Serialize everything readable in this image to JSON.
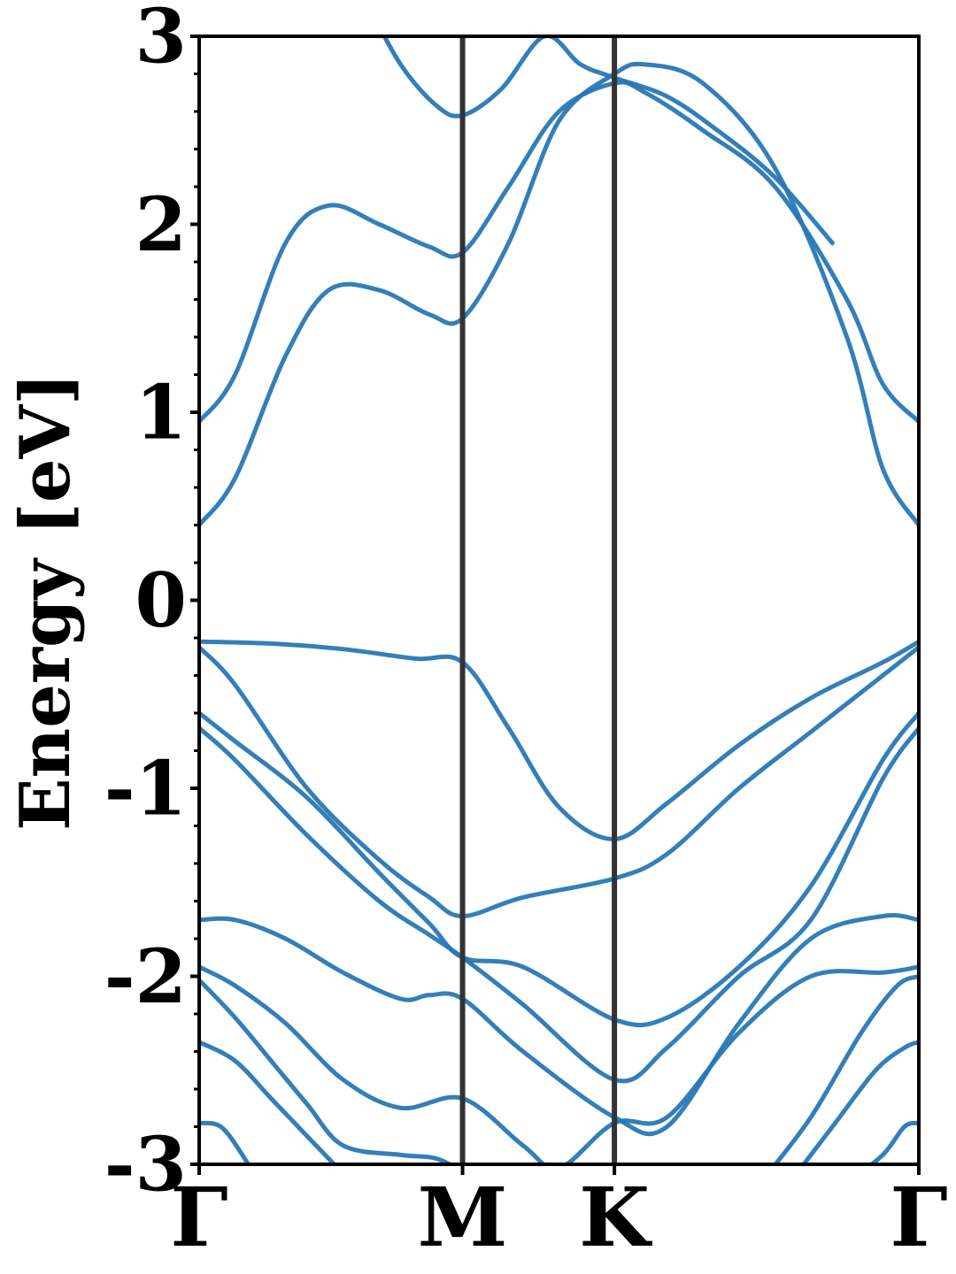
{
  "chart_data": {
    "type": "line",
    "title": "",
    "xlabel": "",
    "ylabel": "Energy [eV]",
    "ylim": [
      -3,
      3
    ],
    "yticks": [
      -3,
      -2,
      -1,
      0,
      1,
      2,
      3
    ],
    "ytick_labels": [
      "-3",
      "-2",
      "-1",
      "0",
      "1",
      "2",
      "3"
    ],
    "xlim": [
      0,
      1
    ],
    "kpoints": [
      {
        "label": "Γ",
        "x": 0.0
      },
      {
        "label": "M",
        "x": 0.366
      },
      {
        "label": "K",
        "x": 0.577
      },
      {
        "label": "Γ",
        "x": 1.0
      }
    ],
    "grid": false,
    "line_color": "#2878b5",
    "kpoint_line_color": "#333333",
    "series": [
      {
        "x": [
          0,
          0.05,
          0.12,
          0.18,
          0.25,
          0.32,
          0.366,
          0.43,
          0.5,
          0.577,
          0.62,
          0.7,
          0.8,
          0.9,
          0.95,
          1.0
        ],
        "values": [
          0.4,
          0.65,
          1.3,
          1.65,
          1.65,
          1.52,
          1.5,
          1.9,
          2.55,
          2.8,
          2.85,
          2.75,
          2.3,
          1.4,
          0.7,
          0.4
        ]
      },
      {
        "x": [
          0,
          0.05,
          0.12,
          0.18,
          0.25,
          0.32,
          0.366,
          0.43,
          0.5,
          0.577,
          0.62,
          0.7,
          0.8,
          0.9,
          0.95,
          1.0
        ],
        "values": [
          0.95,
          1.2,
          1.9,
          2.1,
          2.0,
          1.88,
          1.85,
          2.2,
          2.6,
          2.75,
          2.7,
          2.5,
          2.2,
          1.6,
          1.15,
          0.95
        ]
      },
      {
        "x": [
          0.23,
          0.28,
          0.33,
          0.366,
          0.42,
          0.48,
          0.53,
          0.577,
          0.65,
          0.72,
          0.8,
          0.88
        ],
        "values": [
          3.2,
          2.85,
          2.63,
          2.58,
          2.72,
          3.0,
          2.85,
          2.78,
          2.68,
          2.5,
          2.25,
          1.9
        ]
      },
      {
        "x": [
          0,
          0.1,
          0.2,
          0.3,
          0.366,
          0.43,
          0.5,
          0.577,
          0.65,
          0.75,
          0.85,
          0.95,
          1.0
        ],
        "values": [
          -0.22,
          -0.23,
          -0.26,
          -0.31,
          -0.33,
          -0.68,
          -1.1,
          -1.27,
          -1.08,
          -0.77,
          -0.52,
          -0.33,
          -0.22
        ]
      },
      {
        "x": [
          0,
          0.05,
          0.15,
          0.25,
          0.32,
          0.366,
          0.45,
          0.577,
          0.65,
          0.75,
          0.85,
          0.95,
          1.0
        ],
        "values": [
          -0.25,
          -0.45,
          -1.0,
          -1.38,
          -1.58,
          -1.68,
          -1.58,
          -1.48,
          -1.35,
          -1.0,
          -0.7,
          -0.4,
          -0.25
        ]
      },
      {
        "x": [
          0,
          0.05,
          0.15,
          0.25,
          0.32,
          0.366,
          0.45,
          0.577,
          0.65,
          0.75,
          0.85,
          0.95,
          1.0
        ],
        "values": [
          -0.6,
          -0.75,
          -1.05,
          -1.45,
          -1.72,
          -1.9,
          -1.95,
          -2.23,
          -2.22,
          -1.95,
          -1.52,
          -0.85,
          -0.6
        ]
      },
      {
        "x": [
          0,
          0.05,
          0.15,
          0.25,
          0.32,
          0.366,
          0.45,
          0.577,
          0.65,
          0.75,
          0.85,
          0.95,
          1.0
        ],
        "values": [
          -0.68,
          -0.85,
          -1.25,
          -1.6,
          -1.78,
          -1.9,
          -2.15,
          -2.55,
          -2.38,
          -2.0,
          -1.7,
          -0.95,
          -0.68
        ]
      },
      {
        "x": [
          0,
          0.05,
          0.12,
          0.2,
          0.28,
          0.32,
          0.366,
          0.45,
          0.577,
          0.65,
          0.75,
          0.85,
          0.95,
          1.0
        ],
        "values": [
          -1.7,
          -1.7,
          -1.8,
          -1.98,
          -2.12,
          -2.1,
          -2.12,
          -2.4,
          -2.75,
          -2.8,
          -2.25,
          -1.8,
          -1.68,
          -1.7
        ]
      },
      {
        "x": [
          0,
          0.05,
          0.12,
          0.2,
          0.28,
          0.366,
          0.45,
          0.5,
          0.577,
          0.65,
          0.75,
          0.85,
          0.95,
          1.0
        ],
        "values": [
          -1.95,
          -2.05,
          -2.25,
          -2.55,
          -2.7,
          -2.65,
          -2.9,
          -3.02,
          -2.78,
          -2.75,
          -2.3,
          -2.0,
          -1.98,
          -1.95
        ]
      },
      {
        "x": [
          0,
          0.05,
          0.1,
          0.15,
          0.2,
          0.28,
          0.33,
          0.366,
          0.4
        ],
        "values": [
          -2.02,
          -2.22,
          -2.45,
          -2.68,
          -2.9,
          -2.95,
          -2.97,
          -3.05,
          -3.2
        ]
      },
      {
        "x": [
          0,
          0.05,
          0.1,
          0.15,
          0.2,
          0.25
        ],
        "values": [
          -2.35,
          -2.45,
          -2.65,
          -2.85,
          -3.05,
          -3.25
        ]
      },
      {
        "x": [
          0,
          0.03,
          0.06,
          0.09
        ],
        "values": [
          -2.78,
          -2.8,
          -2.95,
          -3.15
        ]
      },
      {
        "x": [
          0.78,
          0.85,
          0.92,
          0.97,
          1.0
        ],
        "values": [
          -3.1,
          -2.75,
          -2.3,
          -2.05,
          -2.0
        ]
      },
      {
        "x": [
          0.82,
          0.88,
          0.94,
          0.98,
          1.0
        ],
        "values": [
          -3.1,
          -2.8,
          -2.5,
          -2.38,
          -2.35
        ]
      },
      {
        "x": [
          0.9,
          0.95,
          0.98,
          1.0
        ],
        "values": [
          -3.1,
          -2.95,
          -2.8,
          -2.78
        ]
      }
    ]
  }
}
